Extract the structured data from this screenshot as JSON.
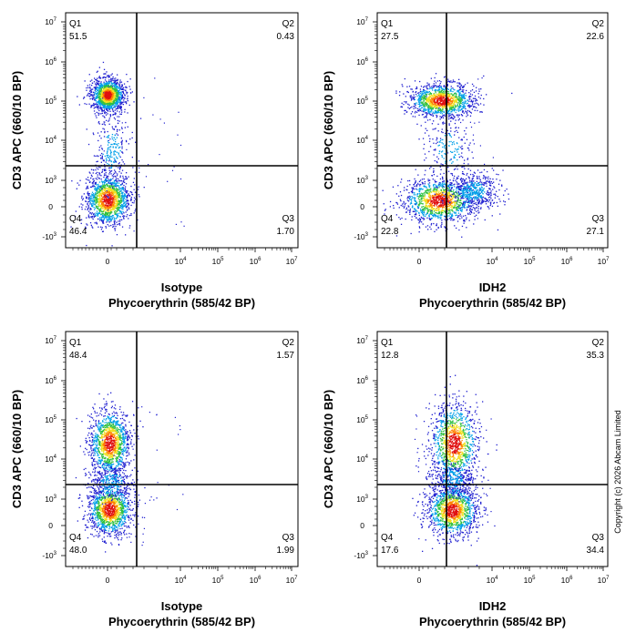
{
  "chart_data": [
    {
      "type": "scatter",
      "subtype": "flow-cytometry-density-dotplot",
      "xlabel_line1": "Isotype",
      "xlabel_line2": "Phycoerythrin (585/42 BP)",
      "ylabel": "CD3 APC (660/10 BP)",
      "quadrants": [
        {
          "name": "Q1",
          "value": "51.5"
        },
        {
          "name": "Q2",
          "value": "0.43"
        },
        {
          "name": "Q3",
          "value": "1.70"
        },
        {
          "name": "Q4",
          "value": "46.4"
        }
      ],
      "populations": [
        {
          "x": 0,
          "y": 100000,
          "weight": 515
        },
        {
          "x": 0,
          "y": 200,
          "weight": 464
        },
        {
          "x": 2000,
          "y": 100000,
          "weight": 4
        },
        {
          "x": 2000,
          "y": 200,
          "weight": 17
        }
      ]
    },
    {
      "type": "scatter",
      "subtype": "flow-cytometry-density-dotplot",
      "xlabel_line1": "IDH2",
      "xlabel_line2": "Phycoerythrin (585/42 BP)",
      "ylabel": "CD3 APC (660/10 BP)",
      "quadrants": [
        {
          "name": "Q1",
          "value": "27.5"
        },
        {
          "name": "Q2",
          "value": "22.6"
        },
        {
          "name": "Q3",
          "value": "27.1"
        },
        {
          "name": "Q4",
          "value": "22.8"
        }
      ],
      "populations": [
        {
          "x": 1000,
          "y": 100000,
          "weight": 501
        },
        {
          "x": 1000,
          "y": 200,
          "weight": 499
        }
      ]
    },
    {
      "type": "scatter",
      "subtype": "flow-cytometry-density-dotplot",
      "xlabel_line1": "Isotype",
      "xlabel_line2": "Phycoerythrin (585/42 BP)",
      "ylabel": "CD3 APC (660/10 BP)",
      "quadrants": [
        {
          "name": "Q1",
          "value": "48.4"
        },
        {
          "name": "Q2",
          "value": "1.57"
        },
        {
          "name": "Q3",
          "value": "1.99"
        },
        {
          "name": "Q4",
          "value": "48.0"
        }
      ],
      "populations": [
        {
          "x": 0,
          "y": 20000,
          "weight": 500
        },
        {
          "x": 0,
          "y": 300,
          "weight": 500
        }
      ]
    },
    {
      "type": "scatter",
      "subtype": "flow-cytometry-density-dotplot",
      "xlabel_line1": "IDH2",
      "xlabel_line2": "Phycoerythrin (585/42 BP)",
      "ylabel": "CD3 APC (660/10 BP)",
      "quadrants": [
        {
          "name": "Q1",
          "value": "12.8"
        },
        {
          "name": "Q2",
          "value": "35.3"
        },
        {
          "name": "Q3",
          "value": "34.4"
        },
        {
          "name": "Q4",
          "value": "17.6"
        }
      ],
      "populations": [
        {
          "x": 2000,
          "y": 20000,
          "weight": 481
        },
        {
          "x": 2000,
          "y": 300,
          "weight": 520
        }
      ]
    }
  ],
  "shared_axes": {
    "scale": "biexponential",
    "x_ticks": [
      "0",
      "10^4",
      "10^5",
      "10^6",
      "10^7"
    ],
    "y_ticks": [
      "-10^3",
      "0",
      "10^3",
      "10^4",
      "10^5",
      "10^6",
      "10^7"
    ]
  },
  "copyright": "Copyright (c) 2026 Abcam Limited",
  "density_colors": [
    "#1f1fd0",
    "#00a0e8",
    "#30c040",
    "#f0e020",
    "#ff8000",
    "#e01010"
  ]
}
